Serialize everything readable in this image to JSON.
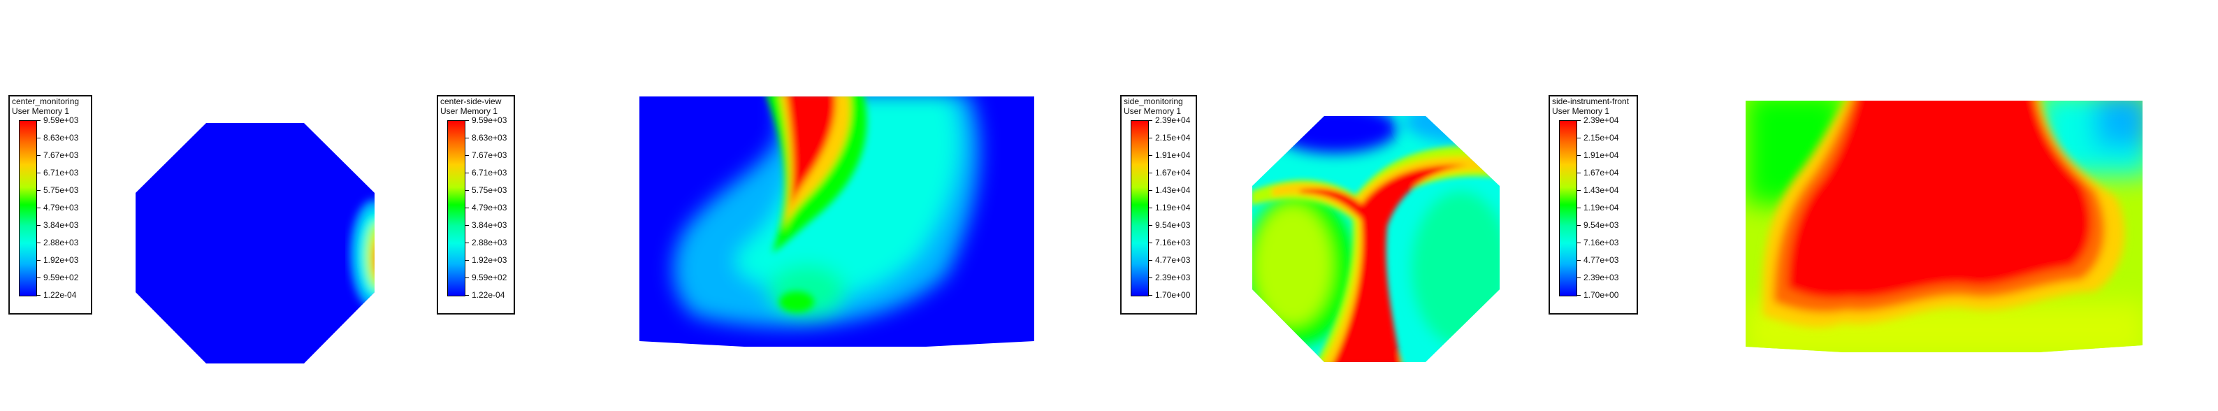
{
  "legends": [
    {
      "id": "center-monitoring",
      "title": "center_monitoring",
      "subtitle": "User Memory 1",
      "labels": [
        "9.59e+03",
        "8.63e+03",
        "7.67e+03",
        "6.71e+03",
        "5.75e+03",
        "4.79e+03",
        "3.84e+03",
        "2.88e+03",
        "1.92e+03",
        "9.59e+02",
        "1.22e-04"
      ]
    },
    {
      "id": "center-side-view",
      "title": "center-side-view",
      "subtitle": "User Memory 1",
      "labels": [
        "9.59e+03",
        "8.63e+03",
        "7.67e+03",
        "6.71e+03",
        "5.75e+03",
        "4.79e+03",
        "3.84e+03",
        "2.88e+03",
        "1.92e+03",
        "9.59e+02",
        "1.22e-04"
      ]
    },
    {
      "id": "side-monitoring",
      "title": "side_monitoring",
      "subtitle": "User Memory 1",
      "labels": [
        "2.39e+04",
        "2.15e+04",
        "1.91e+04",
        "1.67e+04",
        "1.43e+04",
        "1.19e+04",
        "9.54e+03",
        "7.16e+03",
        "4.77e+03",
        "2.39e+03",
        "1.70e+00"
      ]
    },
    {
      "id": "side-instrument-front",
      "title": "side-instrument-front",
      "subtitle": "User Memory 1",
      "labels": [
        "2.39e+04",
        "2.15e+04",
        "1.91e+04",
        "1.67e+04",
        "1.43e+04",
        "1.19e+04",
        "9.54e+03",
        "7.16e+03",
        "4.77e+03",
        "2.39e+03",
        "1.70e+00"
      ]
    }
  ],
  "colormap": [
    "#0000ff",
    "#00b4ff",
    "#00ffe6",
    "#00ffa0",
    "#00ff00",
    "#b4ff00",
    "#ffd000",
    "#ff6a00",
    "#ff0000"
  ]
}
